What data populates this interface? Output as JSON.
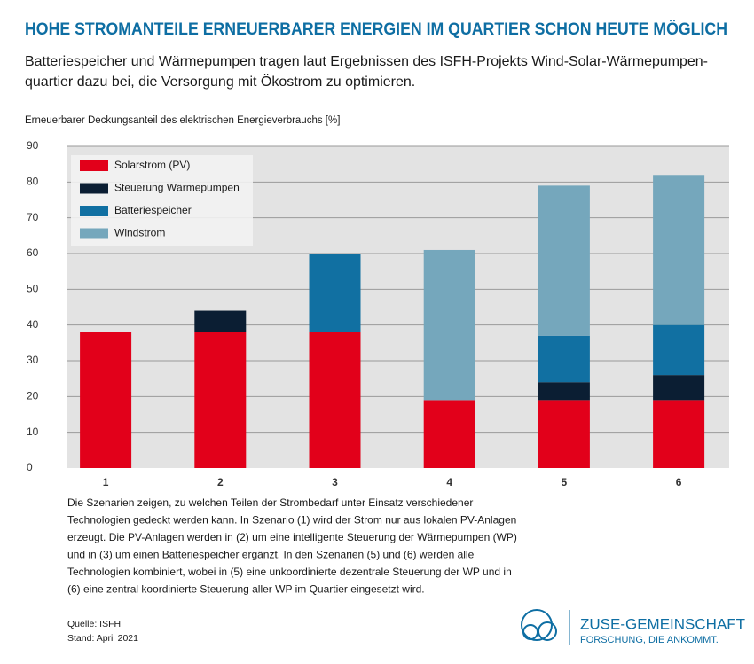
{
  "chart_data": {
    "type": "stacked-bar",
    "title": "HOHE STROMANTEILE ERNEUERBARER ENERGIEN IM QUARTIER SCHON HEUTE MÖGLICH",
    "subtitle": [
      "Batteriespeicher und Wärmepumpen tragen laut Ergebnissen des ISFH-Projekts Wind-Solar-Wärmepumpen-",
      "quartier dazu bei, die Versorgung mit Ökostrom zu optimieren."
    ],
    "y_label": "Erneuerbarer Deckungsanteil des elektrischen Energieverbrauchs [%]",
    "categories": [
      "1",
      "2",
      "3",
      "4",
      "5",
      "6"
    ],
    "series": [
      {
        "name": "Solarstrom (PV)",
        "color": "#e2001a",
        "values": [
          38,
          38,
          38,
          19,
          19,
          19
        ]
      },
      {
        "name": "Steuerung Wärmepumpen",
        "color": "#0b1e33",
        "values": [
          0,
          6,
          0,
          0,
          5,
          7
        ]
      },
      {
        "name": "Batteriespeicher",
        "color": "#1170a2",
        "values": [
          0,
          0,
          22,
          0,
          13,
          14
        ]
      },
      {
        "name": "Windstrom",
        "color": "#75a7bc",
        "values": [
          0,
          0,
          0,
          42,
          42,
          42
        ]
      }
    ],
    "ylim": [
      0,
      90
    ],
    "yticks": [
      0,
      10,
      20,
      30,
      40,
      50,
      60,
      70,
      80,
      90
    ],
    "grid": true,
    "legend": "upper left",
    "description": [
      "Die Szenarien zeigen, zu welchen Teilen der Strombedarf unter Einsatz verschiedener",
      "Technologien gedeckt werden kann. In Szenario (1) wird der Strom nur aus lokalen PV-Anlagen",
      "erzeugt. Die PV-Anlagen werden in (2) um eine intelligente Steuerung der Wärmepumpen (WP)",
      "und in (3) um einen Batteriespeicher ergänzt. In den Szenarien (5) und (6) werden alle",
      "Technologien kombiniert, wobei in (5) eine unkoordinierte dezentrale Steuerung der WP und in",
      "(6) eine zentral koordinierte Steuerung aller WP im Quartier eingesetzt wird."
    ],
    "source": "Quelle: ISFH",
    "date": "Stand: April 2021",
    "logo": {
      "name": "ZUSE-GEMEINSCHAFT",
      "slogan": "FORSCHUNG, DIE ANKOMMT."
    }
  }
}
